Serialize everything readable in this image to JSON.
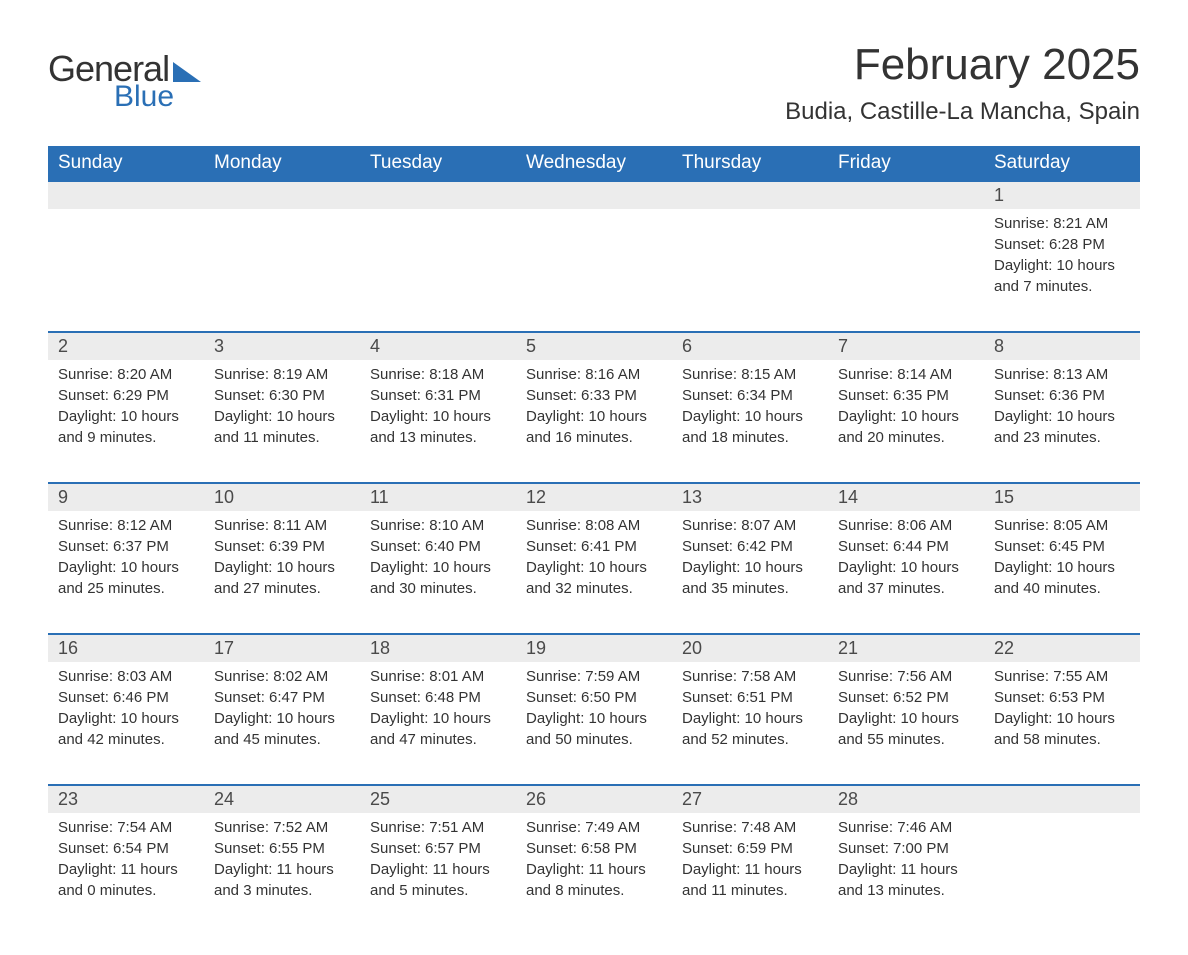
{
  "brand": {
    "word1": "General",
    "word2": "Blue"
  },
  "title": "February 2025",
  "location": "Budia, Castille-La Mancha, Spain",
  "colors": {
    "header_bg": "#2a6fb5",
    "header_text": "#ffffff",
    "daynum_bg": "#ececec",
    "text": "#333333",
    "row_border": "#2a6fb5",
    "page_bg": "#ffffff"
  },
  "typography": {
    "title_fontsize": 44,
    "location_fontsize": 24,
    "weekday_fontsize": 19,
    "daynum_fontsize": 18,
    "body_fontsize": 15,
    "logo_general_fontsize": 36,
    "logo_blue_fontsize": 30
  },
  "weekdays": [
    "Sunday",
    "Monday",
    "Tuesday",
    "Wednesday",
    "Thursday",
    "Friday",
    "Saturday"
  ],
  "first_weekday_index": 6,
  "days": [
    {
      "n": "1",
      "sunrise": "8:21 AM",
      "sunset": "6:28 PM",
      "daylight": "10 hours and 7 minutes."
    },
    {
      "n": "2",
      "sunrise": "8:20 AM",
      "sunset": "6:29 PM",
      "daylight": "10 hours and 9 minutes."
    },
    {
      "n": "3",
      "sunrise": "8:19 AM",
      "sunset": "6:30 PM",
      "daylight": "10 hours and 11 minutes."
    },
    {
      "n": "4",
      "sunrise": "8:18 AM",
      "sunset": "6:31 PM",
      "daylight": "10 hours and 13 minutes."
    },
    {
      "n": "5",
      "sunrise": "8:16 AM",
      "sunset": "6:33 PM",
      "daylight": "10 hours and 16 minutes."
    },
    {
      "n": "6",
      "sunrise": "8:15 AM",
      "sunset": "6:34 PM",
      "daylight": "10 hours and 18 minutes."
    },
    {
      "n": "7",
      "sunrise": "8:14 AM",
      "sunset": "6:35 PM",
      "daylight": "10 hours and 20 minutes."
    },
    {
      "n": "8",
      "sunrise": "8:13 AM",
      "sunset": "6:36 PM",
      "daylight": "10 hours and 23 minutes."
    },
    {
      "n": "9",
      "sunrise": "8:12 AM",
      "sunset": "6:37 PM",
      "daylight": "10 hours and 25 minutes."
    },
    {
      "n": "10",
      "sunrise": "8:11 AM",
      "sunset": "6:39 PM",
      "daylight": "10 hours and 27 minutes."
    },
    {
      "n": "11",
      "sunrise": "8:10 AM",
      "sunset": "6:40 PM",
      "daylight": "10 hours and 30 minutes."
    },
    {
      "n": "12",
      "sunrise": "8:08 AM",
      "sunset": "6:41 PM",
      "daylight": "10 hours and 32 minutes."
    },
    {
      "n": "13",
      "sunrise": "8:07 AM",
      "sunset": "6:42 PM",
      "daylight": "10 hours and 35 minutes."
    },
    {
      "n": "14",
      "sunrise": "8:06 AM",
      "sunset": "6:44 PM",
      "daylight": "10 hours and 37 minutes."
    },
    {
      "n": "15",
      "sunrise": "8:05 AM",
      "sunset": "6:45 PM",
      "daylight": "10 hours and 40 minutes."
    },
    {
      "n": "16",
      "sunrise": "8:03 AM",
      "sunset": "6:46 PM",
      "daylight": "10 hours and 42 minutes."
    },
    {
      "n": "17",
      "sunrise": "8:02 AM",
      "sunset": "6:47 PM",
      "daylight": "10 hours and 45 minutes."
    },
    {
      "n": "18",
      "sunrise": "8:01 AM",
      "sunset": "6:48 PM",
      "daylight": "10 hours and 47 minutes."
    },
    {
      "n": "19",
      "sunrise": "7:59 AM",
      "sunset": "6:50 PM",
      "daylight": "10 hours and 50 minutes."
    },
    {
      "n": "20",
      "sunrise": "7:58 AM",
      "sunset": "6:51 PM",
      "daylight": "10 hours and 52 minutes."
    },
    {
      "n": "21",
      "sunrise": "7:56 AM",
      "sunset": "6:52 PM",
      "daylight": "10 hours and 55 minutes."
    },
    {
      "n": "22",
      "sunrise": "7:55 AM",
      "sunset": "6:53 PM",
      "daylight": "10 hours and 58 minutes."
    },
    {
      "n": "23",
      "sunrise": "7:54 AM",
      "sunset": "6:54 PM",
      "daylight": "11 hours and 0 minutes."
    },
    {
      "n": "24",
      "sunrise": "7:52 AM",
      "sunset": "6:55 PM",
      "daylight": "11 hours and 3 minutes."
    },
    {
      "n": "25",
      "sunrise": "7:51 AM",
      "sunset": "6:57 PM",
      "daylight": "11 hours and 5 minutes."
    },
    {
      "n": "26",
      "sunrise": "7:49 AM",
      "sunset": "6:58 PM",
      "daylight": "11 hours and 8 minutes."
    },
    {
      "n": "27",
      "sunrise": "7:48 AM",
      "sunset": "6:59 PM",
      "daylight": "11 hours and 11 minutes."
    },
    {
      "n": "28",
      "sunrise": "7:46 AM",
      "sunset": "7:00 PM",
      "daylight": "11 hours and 13 minutes."
    }
  ],
  "labels": {
    "sunrise": "Sunrise: ",
    "sunset": "Sunset: ",
    "daylight": "Daylight: "
  }
}
